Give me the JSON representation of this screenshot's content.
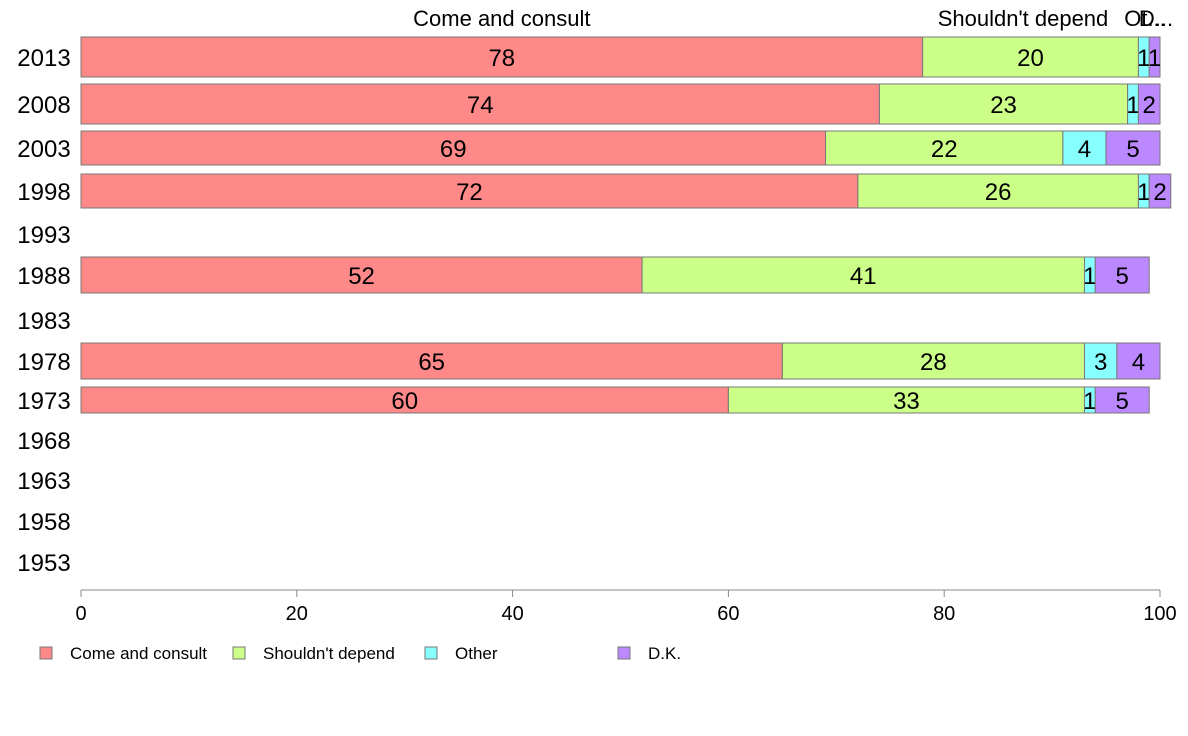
{
  "chart_data": {
    "type": "bar",
    "orientation": "horizontal",
    "stacked": true,
    "categories": [
      "2013",
      "2008",
      "2003",
      "1998",
      "1993",
      "1988",
      "1983",
      "1978",
      "1973",
      "1968",
      "1963",
      "1958",
      "1953"
    ],
    "series": [
      {
        "name": "Come and consult",
        "color": "#ff8888",
        "values": [
          78,
          74,
          69,
          72,
          null,
          52,
          null,
          65,
          60,
          null,
          null,
          null,
          null
        ]
      },
      {
        "name": "Shouldn't depend",
        "color": "#ccff88",
        "values": [
          20,
          23,
          22,
          26,
          null,
          41,
          null,
          28,
          33,
          null,
          null,
          null,
          null
        ]
      },
      {
        "name": "Other",
        "color": "#88ffff",
        "values": [
          1,
          1,
          4,
          1,
          null,
          1,
          null,
          3,
          1,
          null,
          null,
          null,
          null
        ]
      },
      {
        "name": "D.K.",
        "color": "#bb88ff",
        "values": [
          1,
          2,
          5,
          2,
          null,
          5,
          null,
          4,
          5,
          null,
          null,
          null,
          null
        ]
      }
    ],
    "segment_labels_2013": [
      "78",
      "20",
      "1",
      "1"
    ],
    "top_labels": [
      "Come and consult",
      "Shouldn't depend",
      "Ot...",
      "D..."
    ],
    "xlim": [
      0,
      100
    ],
    "xticks": [
      0,
      20,
      40,
      60,
      80,
      100
    ],
    "legend_position": "bottom-left",
    "grid": false
  }
}
